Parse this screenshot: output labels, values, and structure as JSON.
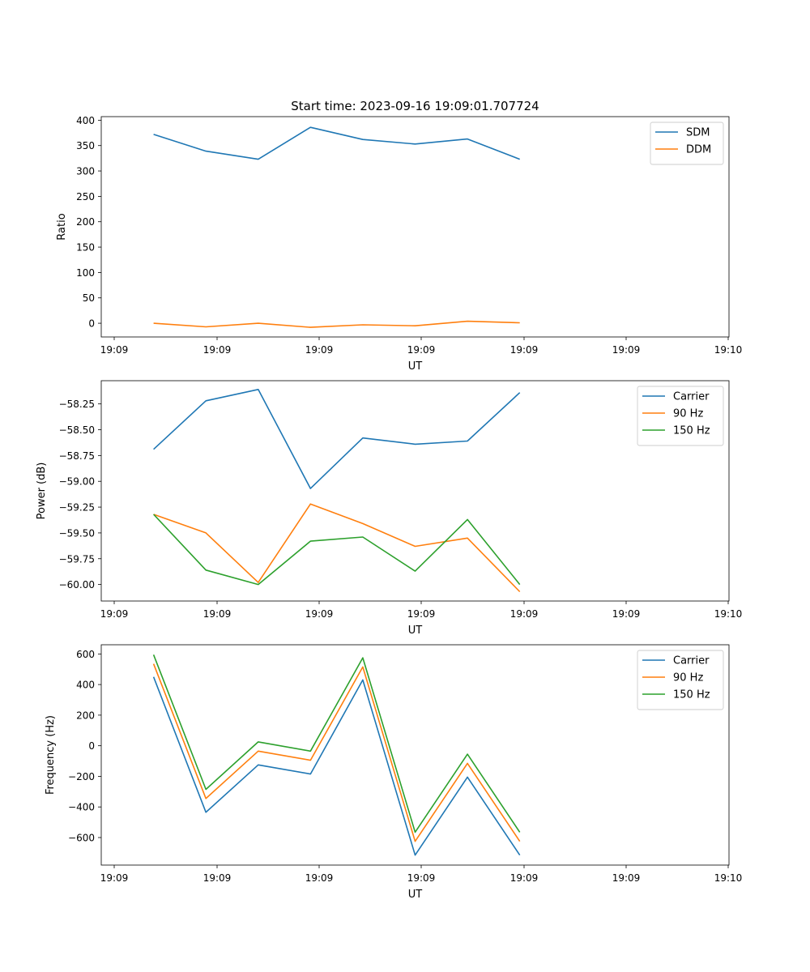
{
  "figure_title": "Start time: 2023-09-16 19:09:01.707724",
  "colors": {
    "blue": "#1f77b4",
    "orange": "#ff7f0e",
    "green": "#2ca02c"
  },
  "chart_data": [
    {
      "type": "line",
      "title": "Start time: 2023-09-16 19:09:01.707724",
      "xlabel": "UT",
      "ylabel": "Ratio",
      "xticks": [
        "19:09",
        "19:09",
        "19:09",
        "19:09",
        "19:09",
        "19:09",
        "19:10"
      ],
      "x": [
        1,
        2,
        3,
        4,
        5,
        6,
        7,
        8
      ],
      "xlim": [
        0,
        12
      ],
      "ylim": [
        -27,
        407
      ],
      "yticks": [
        0,
        50,
        100,
        150,
        200,
        250,
        300,
        350,
        400
      ],
      "ytick_labels": [
        "0",
        "50",
        "100",
        "150",
        "200",
        "250",
        "300",
        "350",
        "400"
      ],
      "legend": "upper right",
      "series": [
        {
          "name": "SDM",
          "color": "#1f77b4",
          "values": [
            372,
            339,
            323,
            386,
            362,
            353,
            363,
            323
          ]
        },
        {
          "name": "DDM",
          "color": "#ff7f0e",
          "values": [
            0,
            -7,
            0,
            -8,
            -3,
            -5,
            4,
            1
          ]
        }
      ]
    },
    {
      "type": "line",
      "title": "",
      "xlabel": "UT",
      "ylabel": "Power (dB)",
      "xticks": [
        "19:09",
        "19:09",
        "19:09",
        "19:09",
        "19:09",
        "19:09",
        "19:10"
      ],
      "x": [
        1,
        2,
        3,
        4,
        5,
        6,
        7,
        8
      ],
      "xlim": [
        0,
        12
      ],
      "ylim": [
        -60.16,
        -58.025
      ],
      "yticks": [
        -60.0,
        -59.75,
        -59.5,
        -59.25,
        -59.0,
        -58.75,
        -58.5,
        -58.25
      ],
      "ytick_labels": [
        "−60.00",
        "−59.75",
        "−59.50",
        "−59.25",
        "−59.00",
        "−58.75",
        "−58.50",
        "−58.25"
      ],
      "legend": "upper right",
      "series": [
        {
          "name": "Carrier",
          "color": "#1f77b4",
          "values": [
            -58.69,
            -58.22,
            -58.11,
            -59.07,
            -58.58,
            -58.64,
            -58.61,
            -58.14
          ]
        },
        {
          "name": "90 Hz",
          "color": "#ff7f0e",
          "values": [
            -59.32,
            -59.5,
            -59.98,
            -59.22,
            -59.41,
            -59.63,
            -59.55,
            -60.07
          ]
        },
        {
          "name": "150 Hz",
          "color": "#2ca02c",
          "values": [
            -59.32,
            -59.86,
            -60.0,
            -59.58,
            -59.54,
            -59.87,
            -59.37,
            -60.0
          ]
        }
      ]
    },
    {
      "type": "line",
      "title": "",
      "xlabel": "UT",
      "ylabel": "Frequency (Hz)",
      "xticks": [
        "19:09",
        "19:09",
        "19:09",
        "19:09",
        "19:09",
        "19:09",
        "19:10"
      ],
      "x": [
        1,
        2,
        3,
        4,
        5,
        6,
        7,
        8
      ],
      "xlim": [
        0,
        12
      ],
      "ylim": [
        -780,
        660
      ],
      "yticks": [
        -600,
        -400,
        -200,
        0,
        200,
        400,
        600
      ],
      "ytick_labels": [
        "−600",
        "−400",
        "−200",
        "0",
        "200",
        "400",
        "600"
      ],
      "legend": "upper right",
      "series": [
        {
          "name": "Carrier",
          "color": "#1f77b4",
          "values": [
            450,
            -435,
            -125,
            -185,
            430,
            -715,
            -205,
            -715
          ]
        },
        {
          "name": "90 Hz",
          "color": "#ff7f0e",
          "values": [
            535,
            -345,
            -35,
            -95,
            515,
            -625,
            -115,
            -625
          ]
        },
        {
          "name": "150 Hz",
          "color": "#2ca02c",
          "values": [
            595,
            -285,
            25,
            -35,
            575,
            -565,
            -55,
            -565
          ]
        }
      ]
    }
  ]
}
